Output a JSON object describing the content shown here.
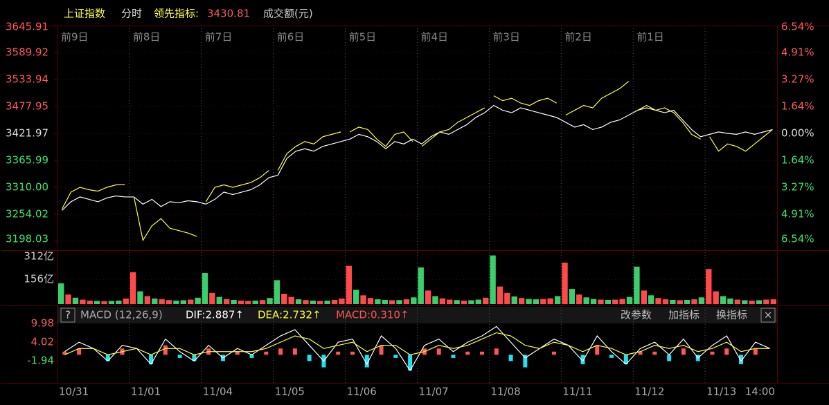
{
  "header": {
    "name": "上证指数",
    "mode": "分时",
    "lead_label": "领先指标:",
    "lead_value": "3430.81",
    "volume_label": "成交额(元)"
  },
  "chart_data": [
    {
      "type": "line",
      "name": "price",
      "top_labels": [
        "前9日",
        "前8日",
        "前7日",
        "前6日",
        "前5日",
        "前4日",
        "前3日",
        "前2日",
        "前1日"
      ],
      "ylim": [
        3198.03,
        3645.91
      ],
      "yticks": [
        {
          "value": 3198.03,
          "label": "3198.03"
        },
        3254.02,
        {
          "value": 3310.0,
          "label": "3310.00"
        },
        3365.99,
        3421.97,
        3477.95,
        3533.94,
        3589.92,
        3645.91
      ],
      "y2lim": [
        -6.54,
        6.54
      ],
      "y2ticks": [
        {
          "value": -6.54,
          "label": "6.54%"
        },
        {
          "value": -4.91,
          "label": "4.91%"
        },
        {
          "value": -3.27,
          "label": "3.27%"
        },
        {
          "value": -1.64,
          "label": "1.64%"
        },
        {
          "value": 0,
          "label": "0.00%"
        },
        {
          "value": 1.64,
          "label": "1.64%"
        },
        {
          "value": 3.27,
          "label": "3.27%"
        },
        {
          "value": 4.91,
          "label": "4.91%"
        },
        {
          "value": 6.54,
          "label": "6.54%"
        }
      ],
      "points_per_day": 8,
      "series": [
        {
          "color": "#ffffff",
          "values": [
            3262,
            3280,
            3290,
            3285,
            3280,
            3288,
            3292,
            3290,
            3290,
            3275,
            3285,
            3270,
            3280,
            3278,
            3282,
            3280,
            3275,
            3285,
            3300,
            3295,
            3300,
            3305,
            3315,
            3330,
            3335,
            3370,
            3385,
            3390,
            3385,
            3395,
            3400,
            3405,
            3410,
            3420,
            3415,
            3405,
            3390,
            3405,
            3400,
            3410,
            3400,
            3415,
            3425,
            3420,
            3430,
            3440,
            3455,
            3465,
            3480,
            3470,
            3465,
            3475,
            3470,
            3465,
            3460,
            3455,
            3445,
            3435,
            3440,
            3430,
            3435,
            3445,
            3450,
            3460,
            3470,
            3475,
            3470,
            3465,
            3470,
            3450,
            3430,
            3415,
            3420,
            3425,
            3422,
            3420,
            3425,
            3420,
            3425,
            3430
          ]
        },
        {
          "color": "#ffff33",
          "values": [
            3265,
            3300,
            3310,
            3305,
            3302,
            3310,
            3315,
            3316,
            3290,
            3200,
            3230,
            3245,
            3225,
            3220,
            3215,
            3208,
            3280,
            3310,
            3315,
            3310,
            3315,
            3320,
            3330,
            3345,
            3345,
            3380,
            3395,
            3405,
            3400,
            3415,
            3420,
            3425,
            3425,
            3435,
            3430,
            3410,
            3395,
            3420,
            3425,
            3405,
            3395,
            3410,
            3425,
            3430,
            3445,
            3455,
            3465,
            3475,
            3500,
            3490,
            3495,
            3485,
            3480,
            3490,
            3495,
            3485,
            3460,
            3470,
            3480,
            3475,
            3495,
            3505,
            3515,
            3530,
            3470,
            3480,
            3470,
            3475,
            3465,
            3445,
            3420,
            3410,
            3415,
            3385,
            3400,
            3395,
            3385,
            3400,
            3415,
            3430
          ]
        }
      ]
    },
    {
      "type": "bar",
      "name": "volume",
      "ylim": [
        0,
        312
      ],
      "yticks": [
        {
          "value": 156,
          "label": "156亿"
        },
        {
          "value": 312,
          "label": "312亿"
        }
      ],
      "palette": {
        "u": "#ff4a4a",
        "d": "#3bcf6b"
      },
      "values": [
        130,
        60,
        40,
        28,
        22,
        20,
        18,
        20,
        22,
        35,
        200,
        80,
        50,
        35,
        30,
        25,
        22,
        24,
        28,
        40,
        195,
        70,
        45,
        32,
        26,
        22,
        20,
        22,
        25,
        38,
        150,
        65,
        45,
        30,
        25,
        22,
        20,
        22,
        26,
        35,
        240,
        90,
        55,
        38,
        30,
        26,
        24,
        25,
        30,
        42,
        230,
        85,
        50,
        36,
        28,
        25,
        22,
        24,
        28,
        40,
        305,
        110,
        70,
        48,
        38,
        32,
        30,
        32,
        36,
        50,
        260,
        95,
        60,
        42,
        32,
        28,
        26,
        28,
        32,
        45,
        235,
        85,
        55,
        38,
        30,
        26,
        24,
        26,
        30,
        42,
        220,
        80,
        50,
        35,
        28,
        24,
        22,
        24,
        28,
        30
      ],
      "directions": [
        "d",
        "u",
        "d",
        "u",
        "u",
        "d",
        "u",
        "d",
        "d",
        "u",
        "u",
        "d",
        "u",
        "d",
        "u",
        "u",
        "d",
        "d",
        "u",
        "d",
        "d",
        "u",
        "d",
        "u",
        "d",
        "u",
        "u",
        "d",
        "u",
        "d",
        "d",
        "u",
        "u",
        "d",
        "u",
        "d",
        "u",
        "d",
        "u",
        "u",
        "u",
        "d",
        "u",
        "u",
        "d",
        "d",
        "u",
        "d",
        "u",
        "d",
        "d",
        "u",
        "d",
        "u",
        "u",
        "d",
        "u",
        "d",
        "d",
        "u",
        "d",
        "u",
        "u",
        "d",
        "u",
        "d",
        "d",
        "u",
        "u",
        "d",
        "u",
        "d",
        "u",
        "d",
        "d",
        "u",
        "d",
        "u",
        "u",
        "d",
        "d",
        "u",
        "d",
        "u",
        "u",
        "d",
        "u",
        "d",
        "u",
        "d",
        "u",
        "u",
        "d",
        "d",
        "u",
        "d",
        "u",
        "d",
        "u",
        "u"
      ]
    },
    {
      "type": "macd",
      "name": "macd",
      "header": {
        "help": "?",
        "title": "MACD (12,26,9)",
        "dif": "DIF:2.887↑",
        "dea": "DEA:2.732↑",
        "macd": "MACD:0.310↑",
        "buttons": [
          "改参数",
          "加指标",
          "换指标"
        ],
        "close": "×"
      },
      "ylim": [
        -8.5,
        10.4
      ],
      "yticks": [
        -1.94,
        4.02,
        9.98
      ],
      "days": [
        "10/31",
        "11/01",
        "11/04",
        "11/05",
        "11/06",
        "11/07",
        "11/08",
        "11/11",
        "11/12",
        "11/13"
      ],
      "end_time": "14:00",
      "hist_colors": {
        "pos": "#ff5555",
        "neg": "#22e0f0"
      },
      "series": [
        {
          "color": "#ffffff",
          "values": [
            1,
            4,
            2,
            -2,
            3,
            2,
            -3,
            5,
            1,
            -2,
            3,
            -1,
            2,
            0,
            3,
            6,
            8,
            3,
            -2,
            4,
            5,
            -3,
            6,
            2,
            -5,
            3,
            5,
            1,
            4,
            6,
            9,
            4,
            -1,
            2,
            5,
            3,
            -2,
            6,
            1,
            -3,
            2,
            4,
            0,
            5,
            -1,
            3,
            6,
            -2,
            4,
            2
          ]
        },
        {
          "color": "#ffff33",
          "values": [
            0,
            2,
            2,
            0,
            1,
            2,
            0,
            2,
            2,
            0,
            1,
            1,
            1,
            1,
            2,
            4,
            6,
            5,
            2,
            3,
            4,
            1,
            3,
            3,
            0,
            1,
            3,
            2,
            3,
            5,
            7,
            6,
            3,
            2,
            4,
            3,
            1,
            3,
            2,
            0,
            1,
            3,
            2,
            3,
            1,
            2,
            4,
            1,
            2,
            2
          ]
        }
      ],
      "hist": [
        1,
        2,
        0,
        -2,
        2,
        0,
        -3,
        3,
        -1,
        -2,
        2,
        -2,
        1,
        -1,
        1,
        2,
        2,
        -2,
        -4,
        1,
        1,
        -4,
        3,
        -1,
        -5,
        2,
        2,
        -1,
        1,
        1,
        2,
        -2,
        -4,
        0,
        1,
        0,
        -3,
        3,
        -1,
        -3,
        1,
        1,
        -2,
        2,
        -2,
        1,
        2,
        -3,
        2,
        0
      ]
    }
  ]
}
